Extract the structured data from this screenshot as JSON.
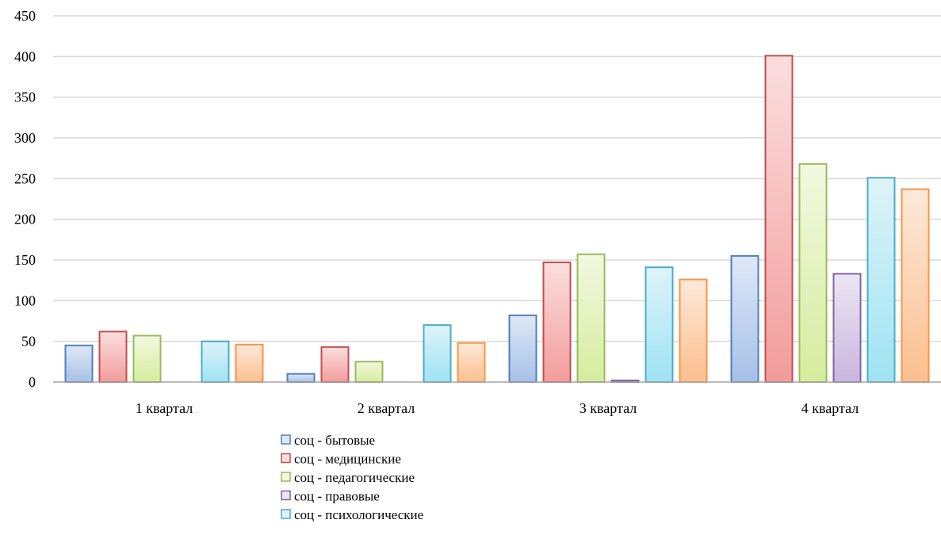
{
  "chart_data": {
    "type": "bar",
    "categories": [
      "1 квартал",
      "2 квартал",
      "3 квартал",
      "4 квартал"
    ],
    "series": [
      {
        "name": "соц - бытовые",
        "values": [
          45,
          10,
          82,
          155
        ]
      },
      {
        "name": "соц - медицинские",
        "values": [
          62,
          43,
          147,
          401
        ]
      },
      {
        "name": "соц - педагогические",
        "values": [
          57,
          25,
          157,
          268
        ]
      },
      {
        "name": "соц - правовые",
        "values": [
          0,
          0,
          2,
          133
        ]
      },
      {
        "name": "соц - психологические",
        "values": [
          50,
          70,
          141,
          251
        ]
      },
      {
        "name": "",
        "values": [
          46,
          48,
          126,
          237
        ]
      }
    ],
    "ylim": [
      0,
      450
    ],
    "yticks": [
      0,
      50,
      100,
      150,
      200,
      250,
      300,
      350,
      400,
      450
    ],
    "grid": true,
    "legend_position": "bottom",
    "title": "",
    "xlabel": "",
    "ylabel": ""
  },
  "colors": {
    "series_stroke": [
      "#4f81bd",
      "#c0504d",
      "#9bbb59",
      "#8064a2",
      "#4bacc6",
      "#f79646"
    ],
    "series_fill_top": [
      "#dfe8f6",
      "#fbdede",
      "#f2f8e0",
      "#ece6f3",
      "#def3f8",
      "#fde9da"
    ],
    "series_fill_bottom": [
      "#a7c0e8",
      "#f29c9c",
      "#d6ec9e",
      "#c9b6df",
      "#9ee3f4",
      "#fbbf8e"
    ],
    "grid": "#d9d9d9",
    "axis": "#a6a6a6"
  }
}
